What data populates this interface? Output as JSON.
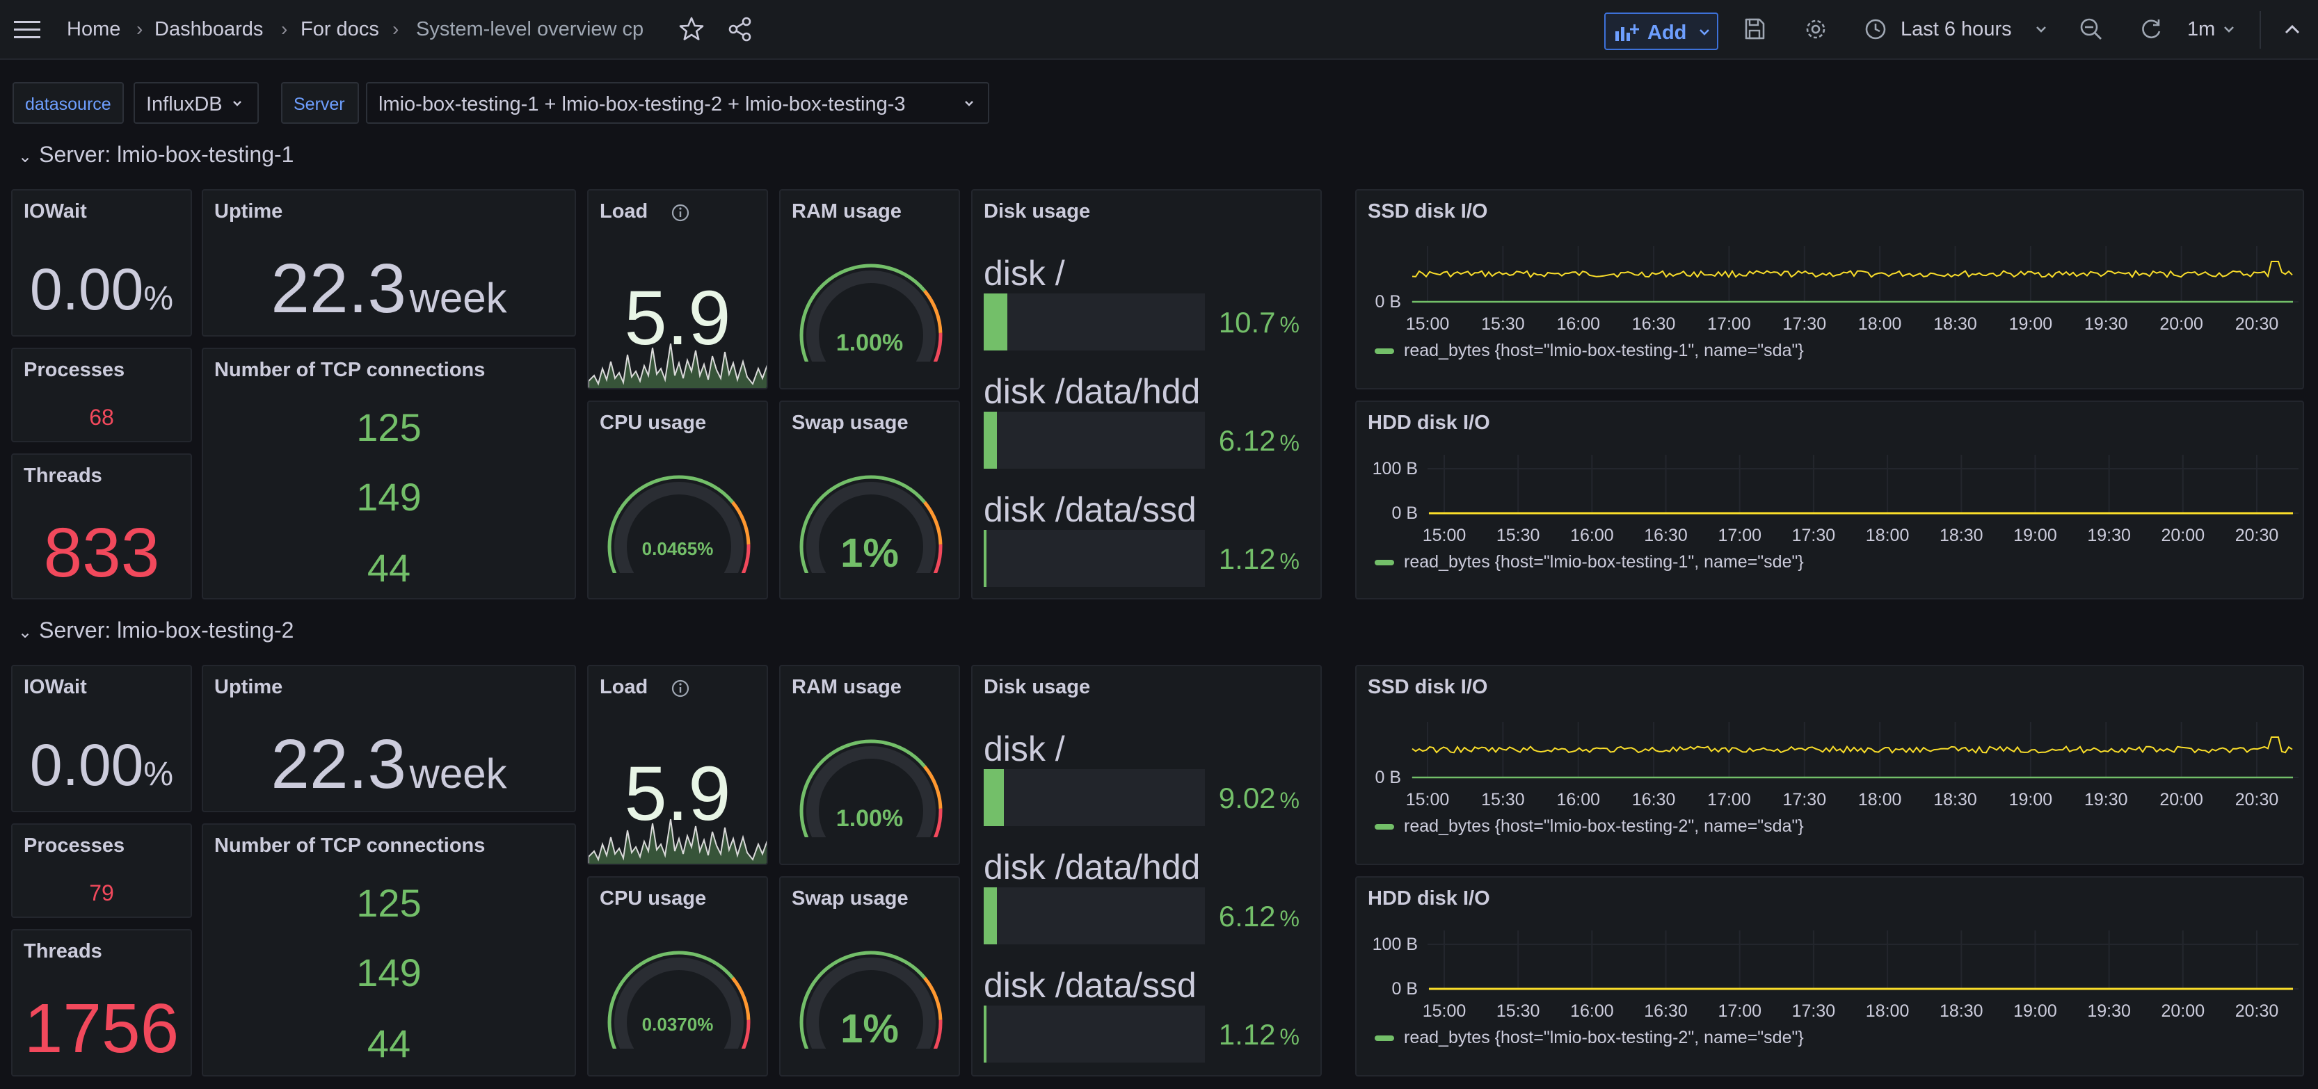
{
  "topbar": {
    "breadcrumbs": [
      "Home",
      "Dashboards",
      "For docs",
      "System-level overview cp"
    ],
    "add_label": "Add",
    "time_range": "Last 6 hours",
    "refresh_interval": "1m"
  },
  "variables": [
    {
      "label": "datasource",
      "value": "InfluxDB"
    },
    {
      "label": "Server",
      "value": "lmio-box-testing-1 + lmio-box-testing-2 + lmio-box-testing-3"
    }
  ],
  "colors": {
    "accent": "#6e9fff",
    "green": "#73bf69",
    "red": "#f2495c",
    "yellow": "#fade2a",
    "orange": "#ff9830"
  },
  "rows": [
    {
      "title": "Server: lmio-box-testing-1",
      "iowait": {
        "title": "IOWait",
        "value": "0.00",
        "unit": "%"
      },
      "uptime": {
        "title": "Uptime",
        "value": "22.3",
        "unit": "week"
      },
      "load": {
        "title": "Load",
        "value": "5.9"
      },
      "ram": {
        "title": "RAM usage",
        "value": "1.00%",
        "level": 0.01
      },
      "cpu": {
        "title": "CPU usage",
        "value": "0.0465%",
        "level": 0.000465
      },
      "swap": {
        "title": "Swap usage",
        "value": "1%",
        "level": 0.01
      },
      "processes": {
        "title": "Processes",
        "value": "68"
      },
      "threads": {
        "title": "Threads",
        "value": "833"
      },
      "tcp": {
        "title": "Number of TCP connections",
        "values": [
          "125",
          "149",
          "44"
        ]
      },
      "disk": {
        "title": "Disk usage",
        "items": [
          {
            "name": "disk /",
            "value": "10.7",
            "unit": "%",
            "percent": 10.7
          },
          {
            "name": "disk /data/hdd",
            "value": "6.12",
            "unit": "%",
            "percent": 6.12
          },
          {
            "name": "disk /data/ssd",
            "value": "1.12",
            "unit": "%",
            "percent": 1.12
          }
        ]
      },
      "ssd": {
        "title": "SSD disk I/O",
        "y_ticks": [
          "0 B"
        ],
        "legend": "read_bytes {host=\"lmio-box-testing-1\", name=\"sda\"}"
      },
      "hdd": {
        "title": "HDD disk I/O",
        "y_ticks": [
          "100 B",
          "0 B"
        ],
        "legend": "read_bytes {host=\"lmio-box-testing-1\", name=\"sde\"}"
      }
    },
    {
      "title": "Server: lmio-box-testing-2",
      "iowait": {
        "title": "IOWait",
        "value": "0.00",
        "unit": "%"
      },
      "uptime": {
        "title": "Uptime",
        "value": "22.3",
        "unit": "week"
      },
      "load": {
        "title": "Load",
        "value": "5.9"
      },
      "ram": {
        "title": "RAM usage",
        "value": "1.00%",
        "level": 0.01
      },
      "cpu": {
        "title": "CPU usage",
        "value": "0.0370%",
        "level": 0.00037
      },
      "swap": {
        "title": "Swap usage",
        "value": "1%",
        "level": 0.01
      },
      "processes": {
        "title": "Processes",
        "value": "79"
      },
      "threads": {
        "title": "Threads",
        "value": "1756"
      },
      "tcp": {
        "title": "Number of TCP connections",
        "values": [
          "125",
          "149",
          "44"
        ]
      },
      "disk": {
        "title": "Disk usage",
        "items": [
          {
            "name": "disk /",
            "value": "9.02",
            "unit": "%",
            "percent": 9.02
          },
          {
            "name": "disk /data/hdd",
            "value": "6.12",
            "unit": "%",
            "percent": 6.12
          },
          {
            "name": "disk /data/ssd",
            "value": "1.12",
            "unit": "%",
            "percent": 1.12
          }
        ]
      },
      "ssd": {
        "title": "SSD disk I/O",
        "y_ticks": [
          "0 B"
        ],
        "legend": "read_bytes {host=\"lmio-box-testing-2\", name=\"sda\"}"
      },
      "hdd": {
        "title": "HDD disk I/O",
        "y_ticks": [
          "100 B",
          "0 B"
        ],
        "legend": "read_bytes {host=\"lmio-box-testing-2\", name=\"sde\"}"
      }
    }
  ],
  "x_ticks": [
    "15:00",
    "15:30",
    "16:00",
    "16:30",
    "17:00",
    "17:30",
    "18:00",
    "18:30",
    "19:00",
    "19:30",
    "20:00",
    "20:30"
  ]
}
